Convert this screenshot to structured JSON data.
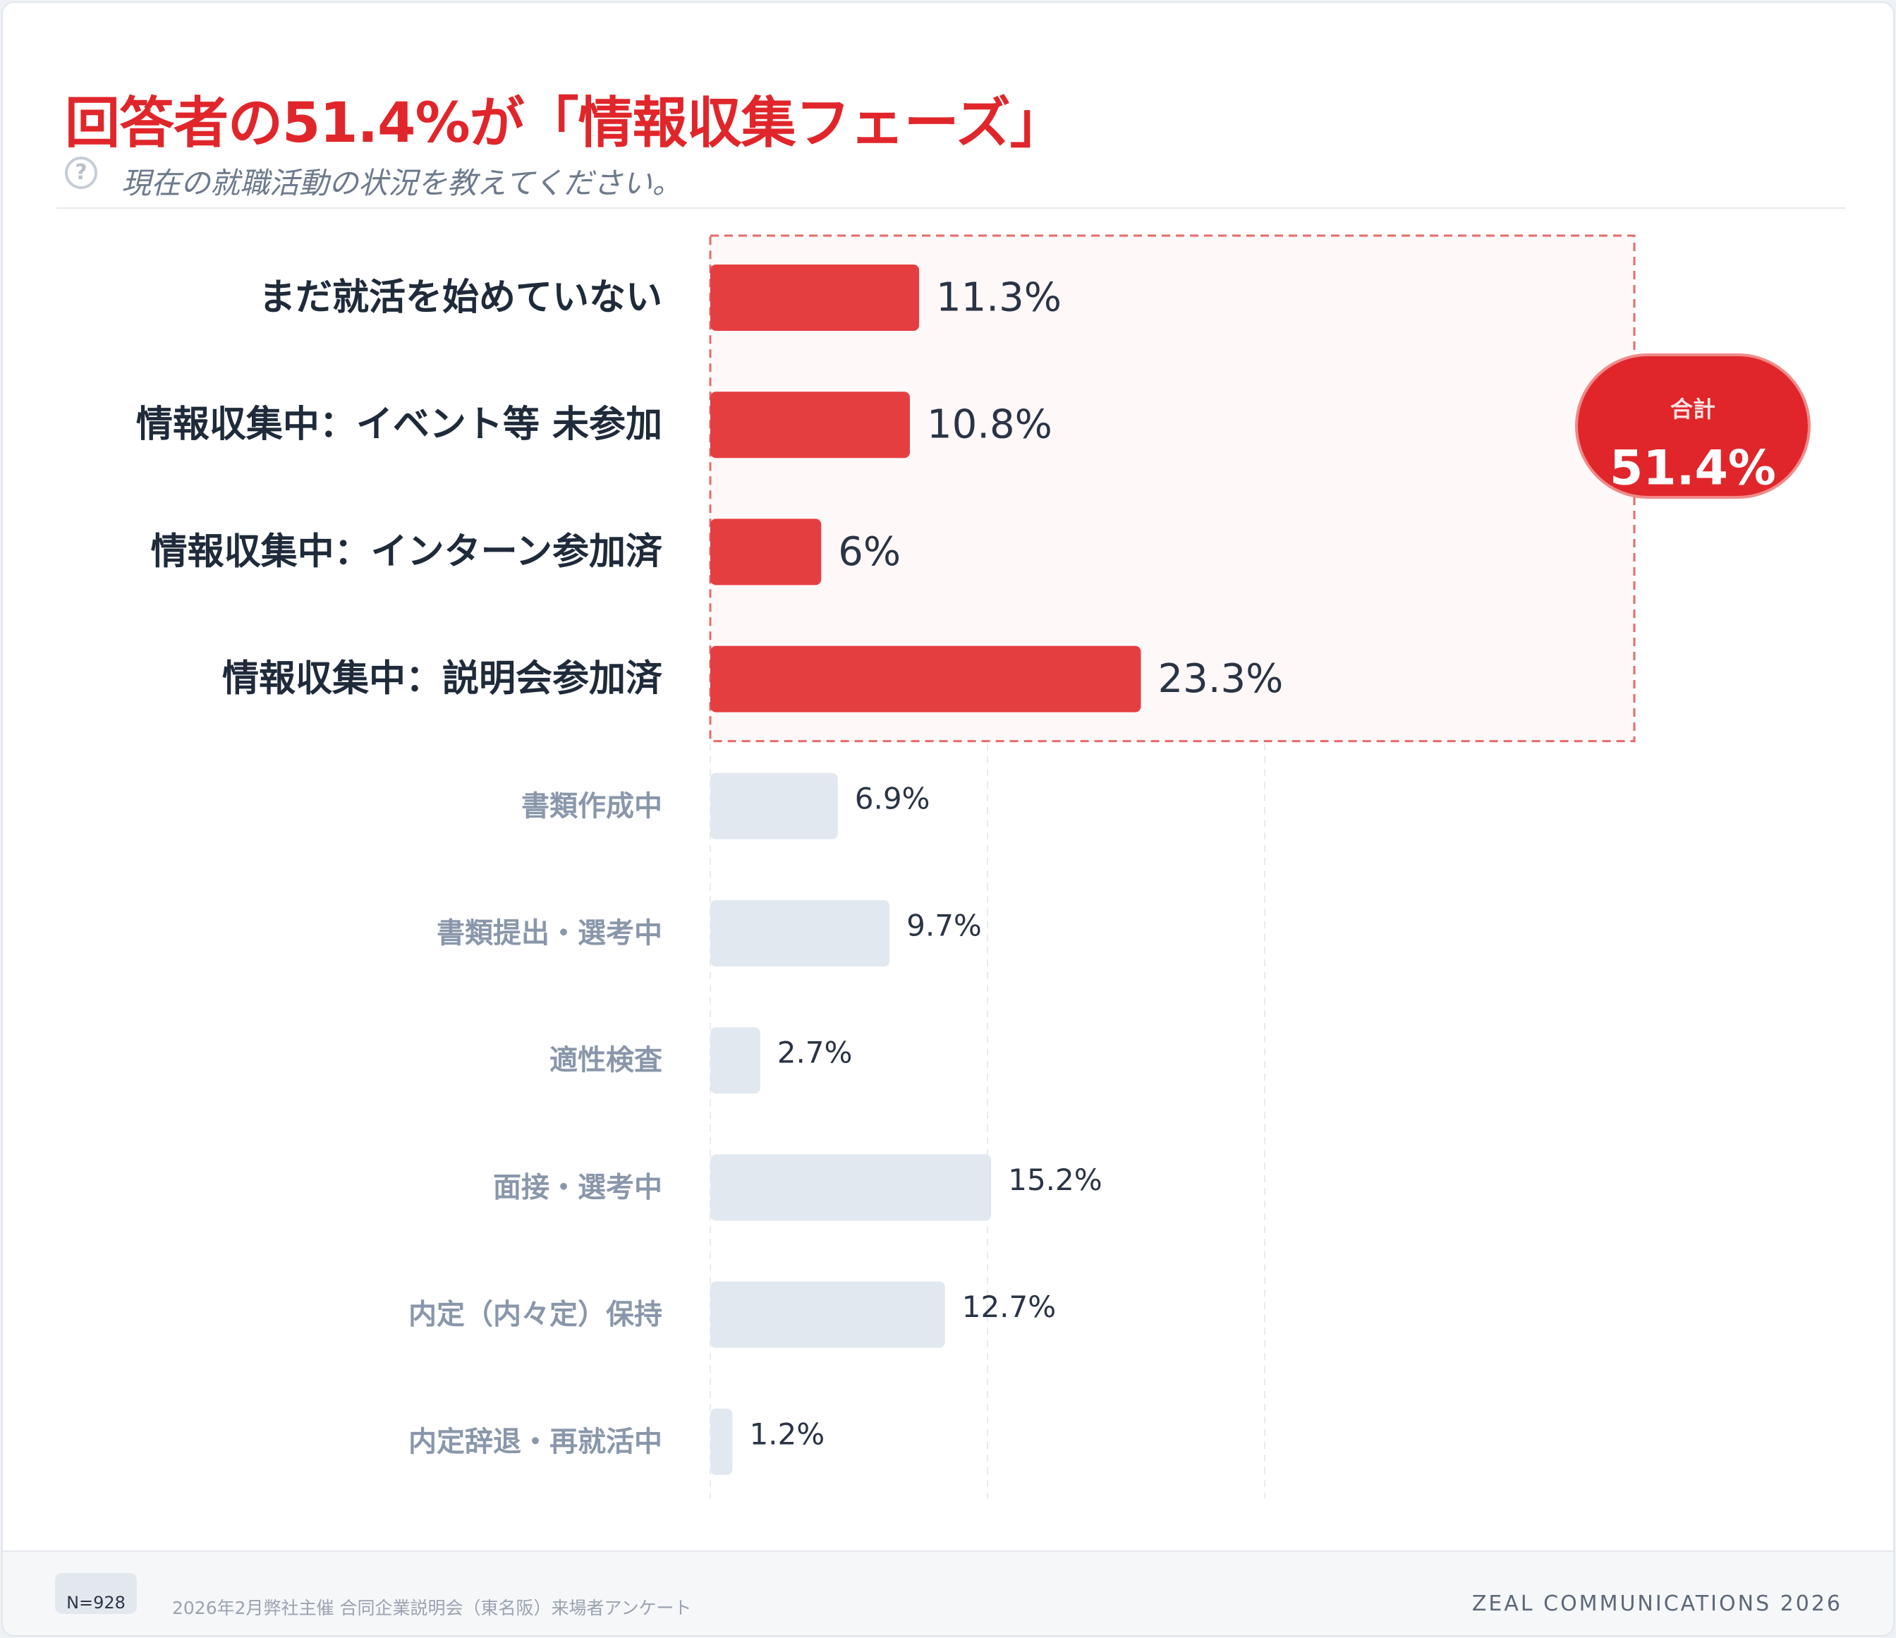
{
  "header": {
    "title": "回答者の51.4%が「情報収集フェーズ」",
    "question_icon": "?",
    "subtitle": "現在の就職活動の状況を教えてください。"
  },
  "chart_data": {
    "type": "bar",
    "orientation": "horizontal",
    "categories": [
      "まだ就活を始めていない",
      "情報収集中：イベント等 未参加",
      "情報収集中：インターン参加済",
      "情報収集中：説明会参加済",
      "書類作成中",
      "書類提出・選考中",
      "適性検査",
      "面接・選考中",
      "内定（内々定）保持",
      "内定辞退・再就活中"
    ],
    "values": [
      11.3,
      10.8,
      6,
      23.3,
      6.9,
      9.7,
      2.7,
      15.2,
      12.7,
      1.2
    ],
    "value_labels": [
      "11.3%",
      "10.8%",
      "6%",
      "23.3%",
      "6.9%",
      "9.7%",
      "2.7%",
      "15.2%",
      "12.7%",
      "1.2%"
    ],
    "highlighted": [
      true,
      true,
      true,
      true,
      false,
      false,
      false,
      false,
      false,
      false
    ],
    "xlim": [
      0,
      50
    ],
    "grid": true,
    "unit": "%",
    "colors": {
      "highlight": "#e53e41",
      "muted": "#e2e8f0",
      "highlight_label": "#1f2a3a",
      "muted_label": "#8a97aa",
      "group_border": "#e86a6a",
      "group_fill": "#fff8f8",
      "badge": "#e0262b",
      "badge_border": "#f08a8a"
    },
    "summary": {
      "label": "合計",
      "value": "51.4%"
    }
  },
  "footer": {
    "sample_size": "N=928",
    "source": "2026年2月弊社主催 合同企業説明会（東名阪）来場者アンケート",
    "brand": "ZEAL COMMUNICATIONS 2026"
  }
}
